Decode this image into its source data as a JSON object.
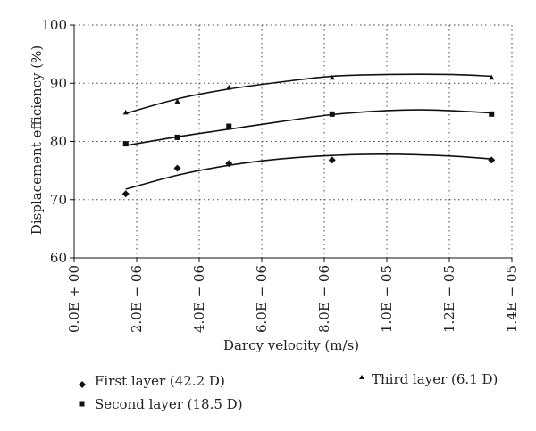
{
  "chart_data": {
    "type": "scatter",
    "xlabel": "Darcy velocity (m/s)",
    "ylabel": "Displacement efficiency (%)",
    "xlim": [
      0,
      1.4e-05
    ],
    "ylim": [
      60,
      100
    ],
    "x_tick_labels": [
      "0.0E + 00",
      "2.0E − 06",
      "4.0E − 06",
      "6.0E − 06",
      "8.0E − 06",
      "1.0E − 05",
      "1.2E − 05",
      "1.4E − 05"
    ],
    "x_tick_values": [
      0,
      2e-06,
      4e-06,
      6e-06,
      8e-06,
      1e-05,
      1.2e-05,
      1.4e-05
    ],
    "y_tick_labels": [
      "60",
      "70",
      "80",
      "90",
      "100"
    ],
    "y_tick_values": [
      60,
      70,
      80,
      90,
      100
    ],
    "grid": true,
    "legend_position": "bottom",
    "series": [
      {
        "name": "First layer (42.2 D)",
        "marker": "diamond",
        "x": [
          1.65e-06,
          3.3e-06,
          4.95e-06,
          8.25e-06,
          1.335e-05
        ],
        "y": [
          71.0,
          75.4,
          76.2,
          76.8,
          76.8
        ],
        "trend": [
          [
            1.65e-06,
            71.8
          ],
          [
            3.3e-06,
            74.2
          ],
          [
            4.95e-06,
            75.9
          ],
          [
            6.6e-06,
            77.0
          ],
          [
            8.25e-06,
            77.6
          ],
          [
            1e-05,
            77.8
          ],
          [
            1.2e-05,
            77.5
          ],
          [
            1.335e-05,
            77.0
          ]
        ]
      },
      {
        "name": "Second layer (18.5 D)",
        "marker": "square",
        "x": [
          1.65e-06,
          3.3e-06,
          4.95e-06,
          8.25e-06,
          1.335e-05
        ],
        "y": [
          79.6,
          80.7,
          82.6,
          84.7,
          84.7
        ],
        "trend": [
          [
            1.65e-06,
            79.3
          ],
          [
            3.3e-06,
            80.8
          ],
          [
            4.95e-06,
            82.1
          ],
          [
            6.6e-06,
            83.4
          ],
          [
            8.25e-06,
            84.6
          ],
          [
            1e-05,
            85.3
          ],
          [
            1.15e-05,
            85.4
          ],
          [
            1.335e-05,
            84.9
          ]
        ]
      },
      {
        "name": "Third layer (6.1 D)",
        "marker": "triangle",
        "x": [
          1.65e-06,
          3.3e-06,
          4.95e-06,
          8.25e-06,
          1.335e-05
        ],
        "y": [
          85.0,
          86.9,
          89.3,
          91.0,
          91.0
        ],
        "trend": [
          [
            1.65e-06,
            84.8
          ],
          [
            3.3e-06,
            87.3
          ],
          [
            4.95e-06,
            89.0
          ],
          [
            6.6e-06,
            90.2
          ],
          [
            8.25e-06,
            91.2
          ],
          [
            1e-05,
            91.5
          ],
          [
            1.2e-05,
            91.5
          ],
          [
            1.335e-05,
            91.2
          ]
        ]
      }
    ]
  }
}
